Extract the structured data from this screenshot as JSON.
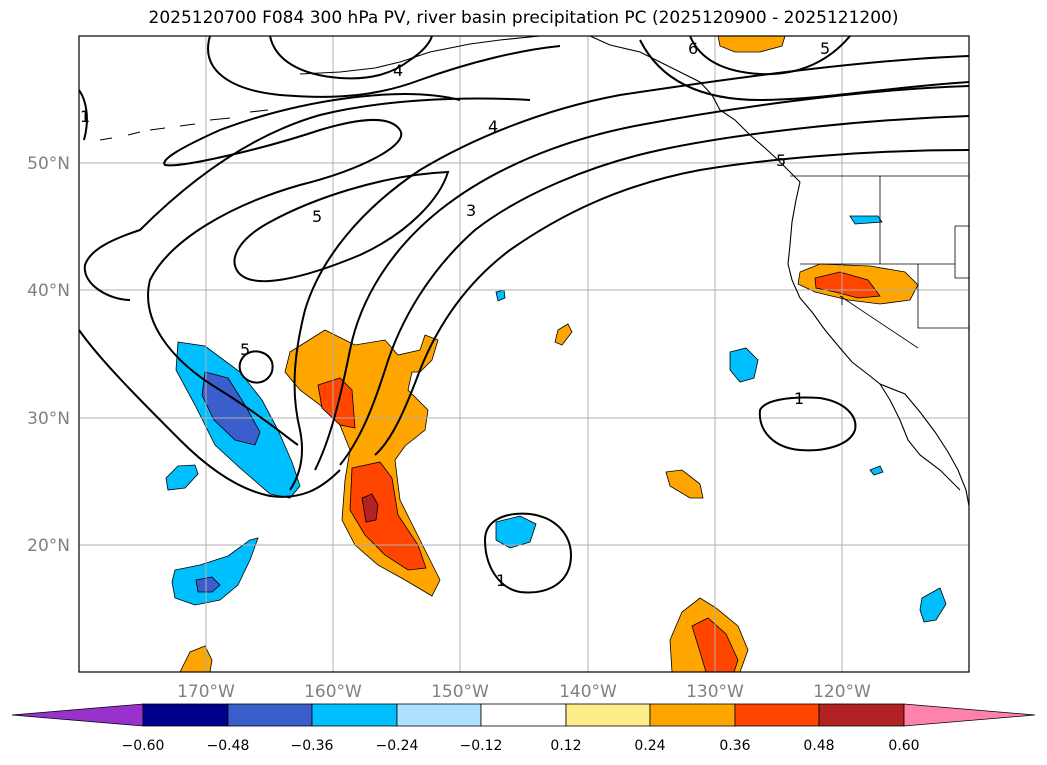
{
  "title": "2025120700 F084 300 hPa PV, river basin precipitation PC (2025120900 - 2025121200)",
  "map": {
    "projection": "PlateCarree",
    "lon_ticks": [
      "170°W",
      "160°W",
      "150°W",
      "140°W",
      "130°W",
      "120°W"
    ],
    "lat_ticks": [
      "50°N",
      "40°N",
      "30°N",
      "20°N"
    ],
    "grid": true,
    "pv_contour_labels": [
      "4",
      "4",
      "5",
      "5",
      "5",
      "3",
      "1",
      "1",
      "1",
      "6",
      "5"
    ]
  },
  "colorbar": {
    "ticks": [
      "−0.60",
      "−0.48",
      "−0.36",
      "−0.24",
      "−0.12",
      "0.12",
      "0.24",
      "0.36",
      "0.48",
      "0.60"
    ],
    "colors": [
      "#9932cc",
      "#00008b",
      "#3a5fcd",
      "#00bfff",
      "#b0e2ff",
      "#ffffff",
      "#ffec8b",
      "#ffa500",
      "#ff4500",
      "#b22222",
      "#ff82ab"
    ]
  }
}
